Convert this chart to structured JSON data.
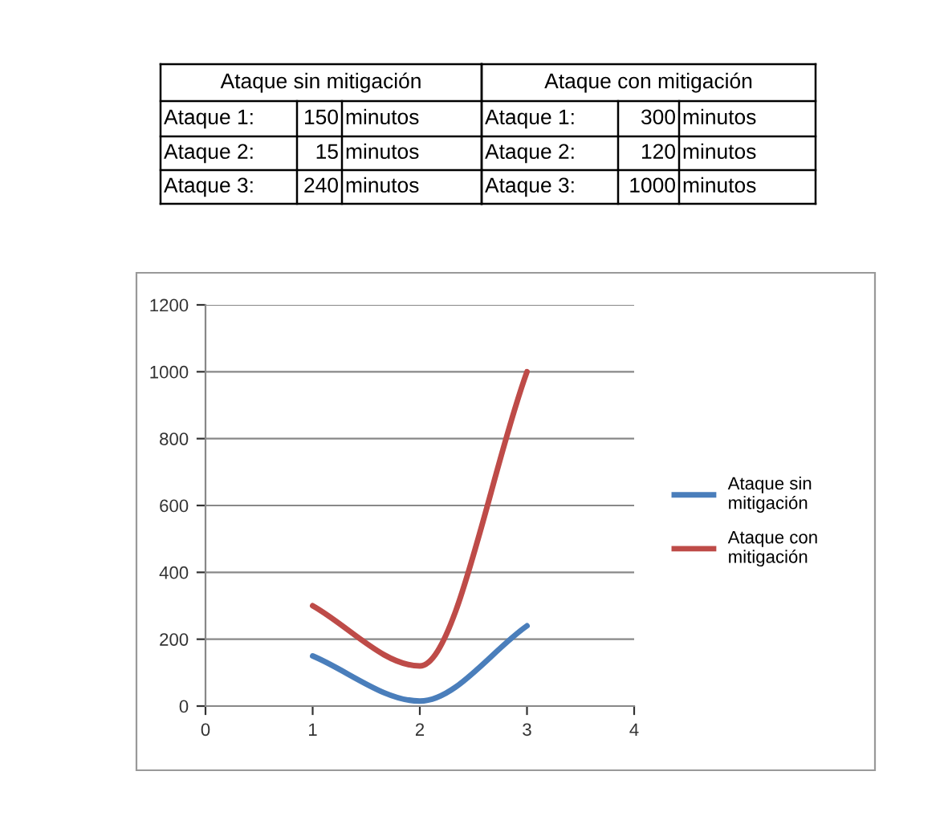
{
  "chart_data": [
    {
      "type": "other",
      "annotations": [
        "Ataque sin mitigación",
        "Ataque con mitigación",
        "Ataque 1:",
        "150",
        "minutos",
        "Ataque 1:",
        "300",
        "minutos",
        "Ataque 2:",
        "15",
        "minutos",
        "Ataque 2:",
        "120",
        "minutos",
        "Ataque 3:",
        "240",
        "minutos",
        "Ataque 3:",
        "1000",
        "minutos"
      ]
    },
    {
      "type": "line",
      "x": [
        1,
        2,
        3
      ],
      "series": [
        {
          "name": "Ataque sin mitigación",
          "color": "#4a7ebb",
          "values": [
            150,
            15,
            240
          ]
        },
        {
          "name": "Ataque con mitigación",
          "color": "#be4b48",
          "values": [
            300,
            120,
            1000
          ]
        }
      ],
      "xlim": [
        0,
        4
      ],
      "xticks": [
        0,
        1,
        2,
        3,
        4
      ],
      "ylim": [
        0,
        1200
      ],
      "yticks": [
        0,
        200,
        400,
        600,
        800,
        1000,
        1200
      ],
      "grid": "y",
      "legend": "right",
      "marker": "none",
      "line_style": "solid"
    }
  ]
}
